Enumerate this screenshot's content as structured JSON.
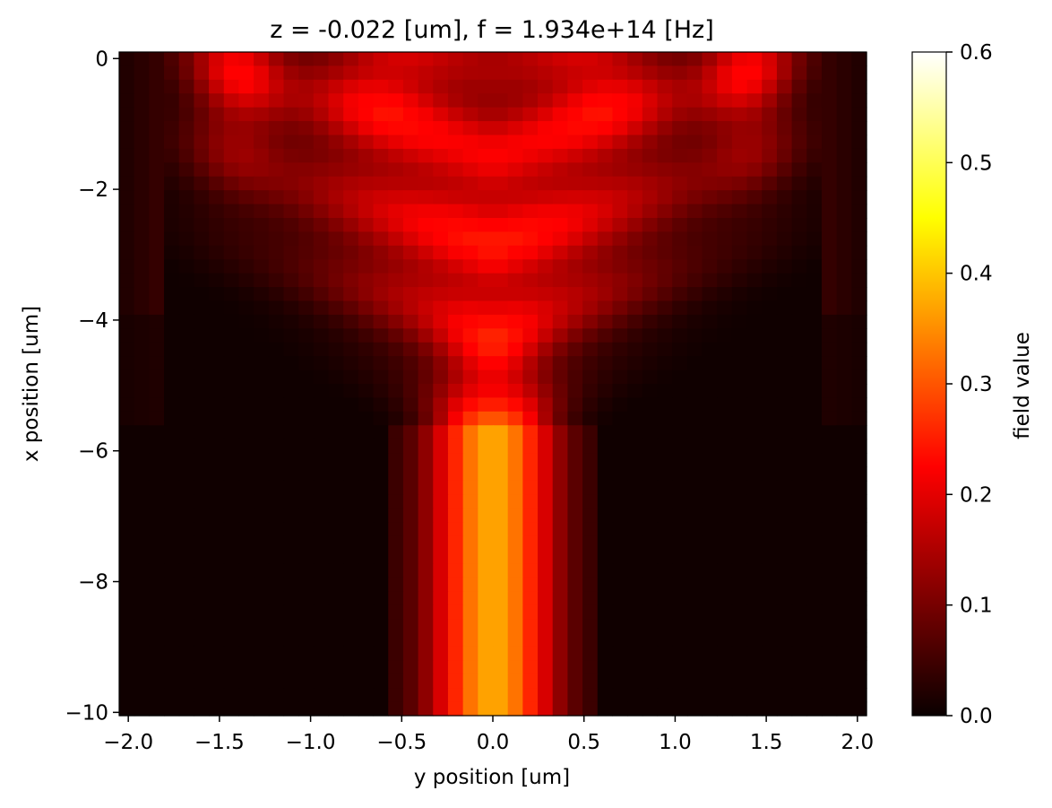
{
  "chart_data": {
    "type": "heatmap",
    "title": "z = -0.022 [um], f = 1.934e+14 [Hz]",
    "xlabel": "y position [um]",
    "ylabel": "x position [um]",
    "colorbar_label": "field value",
    "colormap": "hot",
    "xlim": [
      -2.05,
      2.05
    ],
    "ylim": [
      -10.05,
      0.1
    ],
    "clim": [
      0.0,
      0.6
    ],
    "x_ticks": [
      -2.0,
      -1.5,
      -1.0,
      -0.5,
      0.0,
      0.5,
      1.0,
      1.5,
      2.0
    ],
    "x_tick_labels": [
      "−2.0",
      "−1.5",
      "−1.0",
      "−0.5",
      "0.0",
      "0.5",
      "1.0",
      "1.5",
      "2.0"
    ],
    "y_ticks": [
      0,
      -2,
      -4,
      -6,
      -8,
      -10
    ],
    "y_tick_labels": [
      "0",
      "−2",
      "−4",
      "−6",
      "−8",
      "−10"
    ],
    "colorbar_ticks": [
      0.0,
      0.1,
      0.2,
      0.3,
      0.4,
      0.5,
      0.6
    ],
    "colorbar_tick_labels": [
      "0.0",
      "0.1",
      "0.2",
      "0.3",
      "0.4",
      "0.5",
      "0.6"
    ],
    "grid": false,
    "field_description": {
      "waveguide_half_width_um": 0.55,
      "waveguide_top_um": -5.6,
      "core_peak_value": 0.35,
      "spread_region_peak_value": 0.2,
      "outer_lobe_centers_um": [
        -1.4,
        1.4
      ],
      "edge_region_abs_y_um": 1.8
    }
  }
}
